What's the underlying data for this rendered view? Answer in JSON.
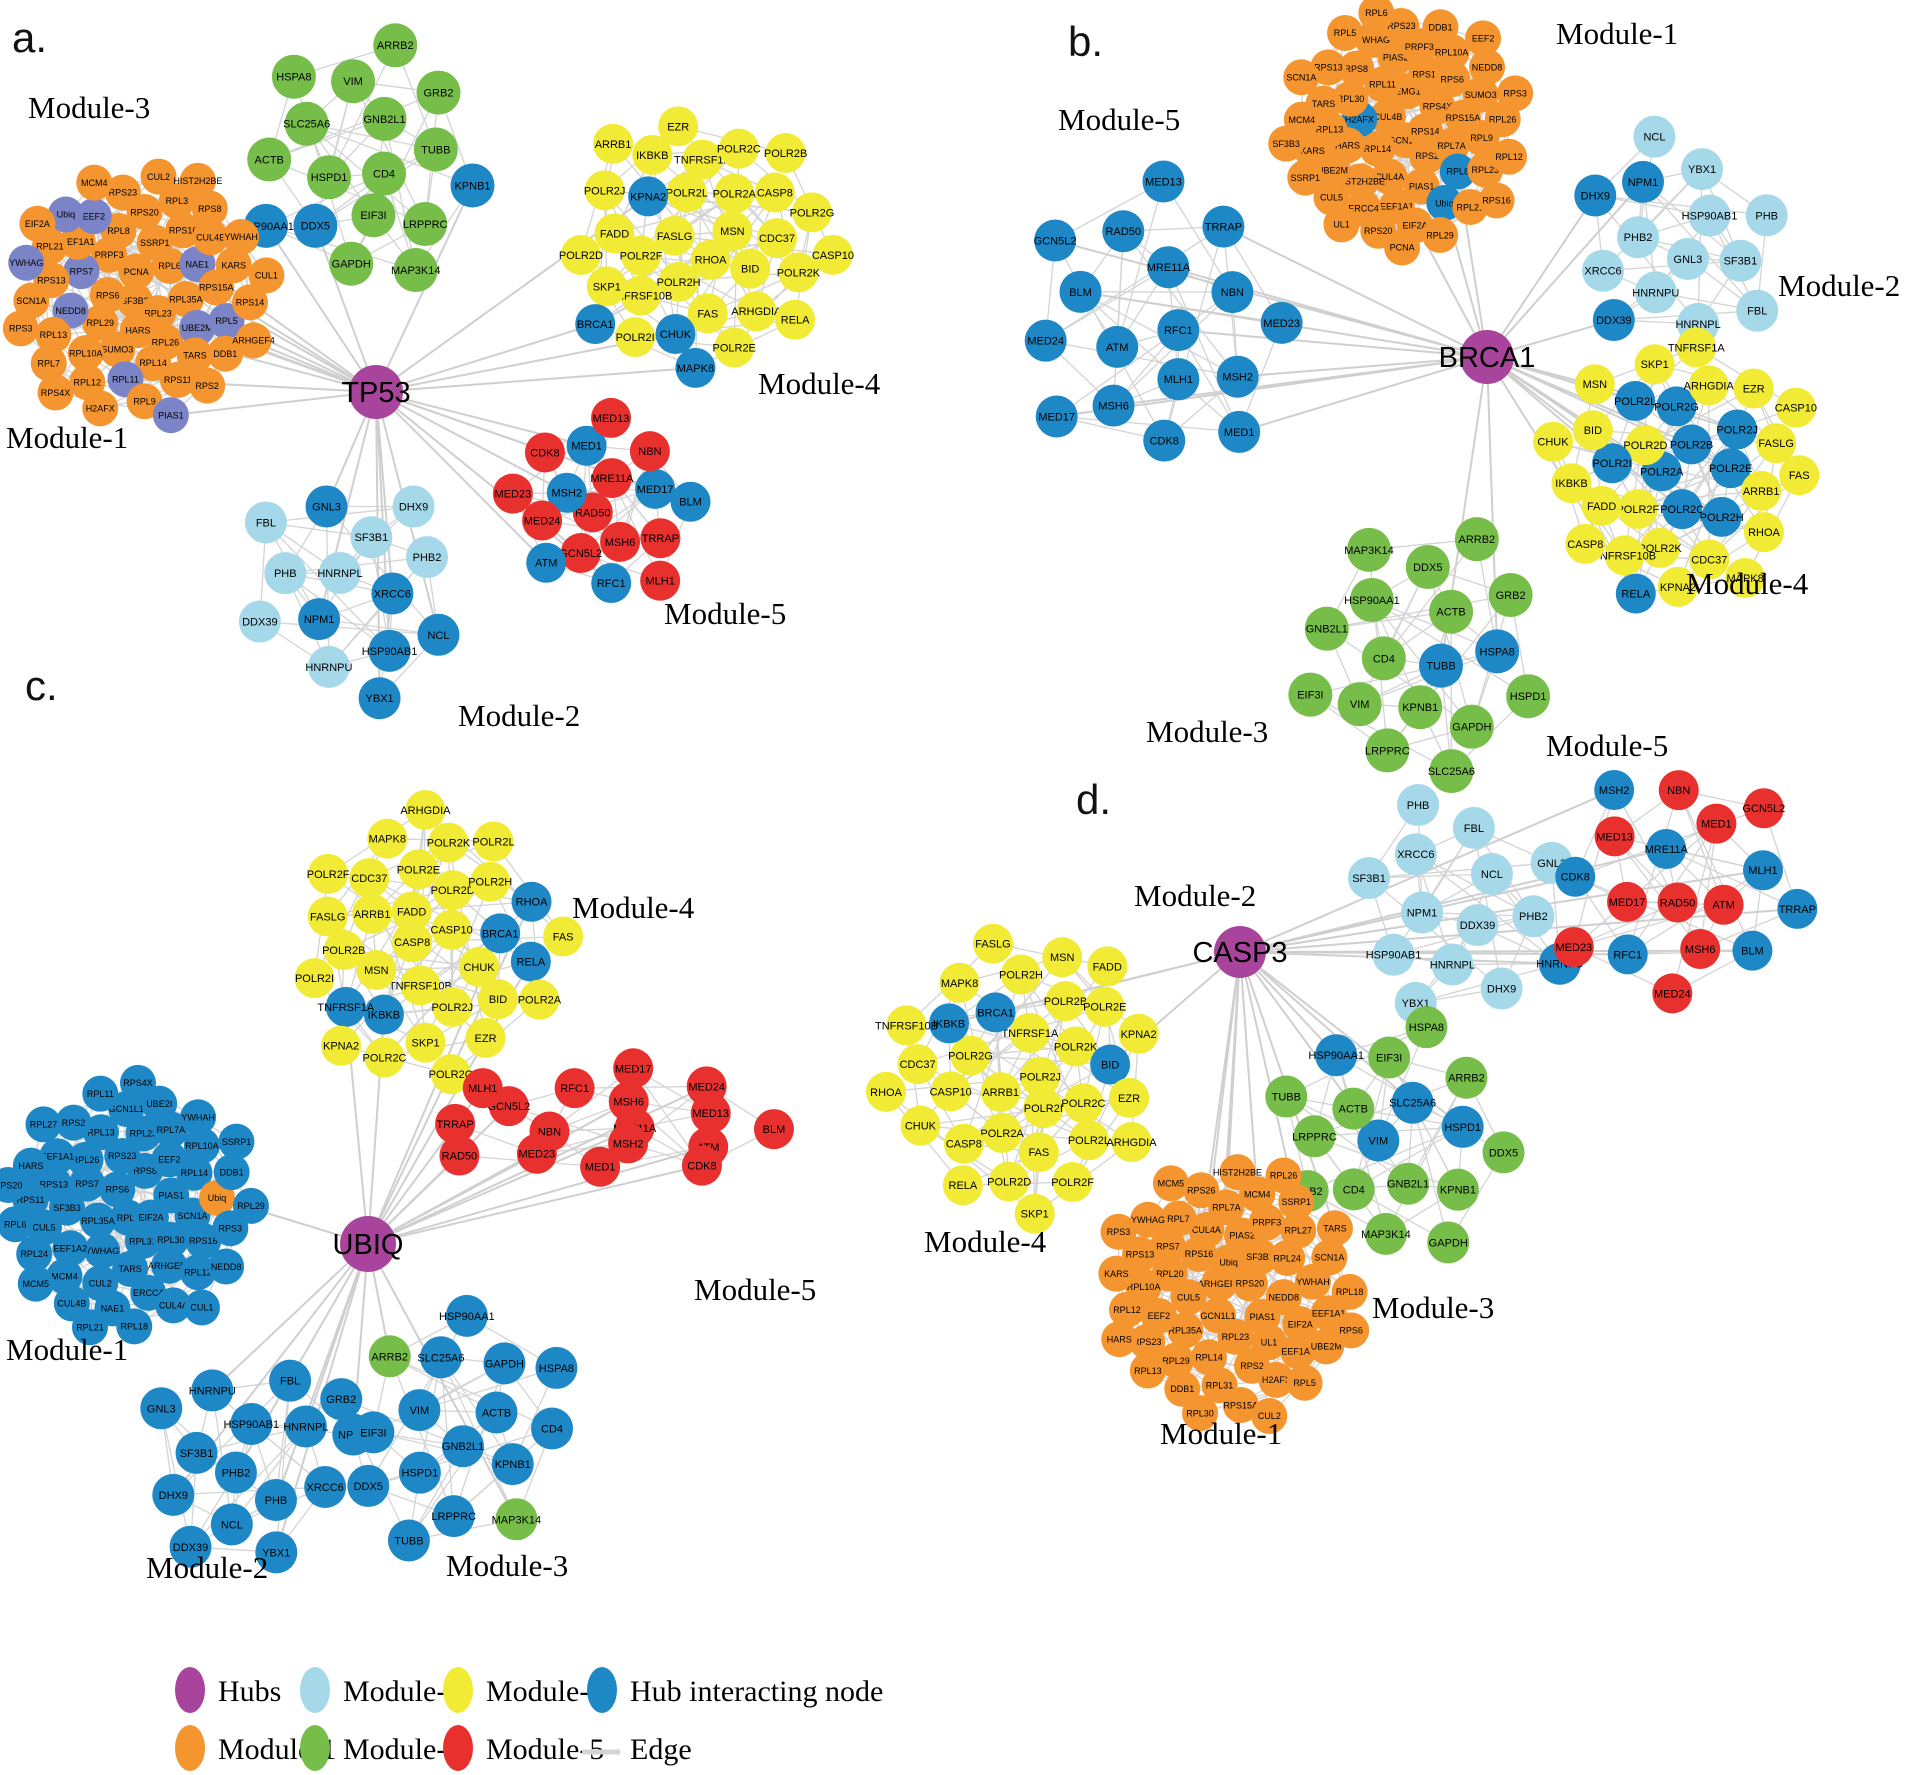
{
  "colors": {
    "hub": "#A9449D",
    "module1": "#F5952F",
    "module2": "#A5D9E9",
    "module3": "#76BE49",
    "module4": "#F2EB35",
    "module5": "#E8312E",
    "interact": "#1E88C7",
    "interact2": "#7B84C6",
    "edge": "#D4D4D4",
    "spoke": "#CFCFCF"
  },
  "legend": {
    "items": [
      {
        "swatch": "hub",
        "label": "Hubs"
      },
      {
        "swatch": "module2",
        "label": "Module-2"
      },
      {
        "swatch": "module4",
        "label": "Module-4"
      },
      {
        "swatch": "interact",
        "label": "Hub interacting node"
      },
      {
        "swatch": "module1",
        "label": "Module-1"
      },
      {
        "swatch": "module3",
        "label": "Module-3"
      },
      {
        "swatch": "module5",
        "label": "Module-5"
      },
      {
        "swatch": "edge",
        "label": "Edge"
      }
    ]
  },
  "panels": [
    {
      "id": "a",
      "letter": "a.",
      "hub": "TP53",
      "clusters": [
        {
          "id": "m3",
          "name": "Module-3",
          "base": "module3",
          "alt": "interact",
          "nodes": [
            "CD4",
            "HSPD1",
            "GNB2L1",
            "EIF3I",
            "SLC25A6",
            "TUBB",
            "*DDX5",
            "VIM",
            "LRPPRC",
            "ACTB",
            "GRB2",
            "GAPDH",
            "HSPA8",
            "*KPNB1",
            "*HSP90AA1",
            "ARRB2",
            "MAP3K14"
          ]
        },
        {
          "id": "m4",
          "name": "Module-4",
          "base": "module4",
          "alt": "interact",
          "nodes": [
            "RHOA",
            "FASLG",
            "MSN",
            "POLR2H",
            "POLR2L",
            "BID",
            "POLR2F",
            "POLR2A",
            "FAS",
            "*KPNA2",
            "CDC37",
            "TNFRSF10B",
            "TNFRSF1A",
            "ARHGDIA",
            "FADD",
            "CASP8",
            "*CHUK",
            "IKBKB",
            "POLR2K",
            "SKP1",
            "POLR2C",
            "POLR2E",
            "POLR2J",
            "POLR2G",
            "POLR2I",
            "EZR",
            "RELA",
            "POLR2D",
            "POLR2B",
            "*MAPK8",
            "ARRB1",
            "CASP10",
            "*BRCA1"
          ]
        },
        {
          "id": "m1",
          "name": "Module-1",
          "base": "module1",
          "alt": "interact2",
          "nodes": [
            "SF3B3",
            "PCNA",
            "RPL23",
            "RPS6",
            "RPL6",
            "HARS",
            "PRPF3",
            "RPL35A",
            "RPL29",
            "SSRP1",
            "RPL26",
            "*RPS7",
            "*NAE1",
            "SUMO3",
            "RPL8",
            "*UBE2M",
            "*NEDD8",
            "RPS16",
            "RPL14",
            "EEF1A1",
            "RPS15A",
            "RPL10A",
            "RPS20",
            "TARS",
            "RPS13",
            "CUL4B",
            "*RPL11",
            "*EEF2",
            "*RPL5",
            "RPL13",
            "RPL3",
            "RPS11",
            "RPL21",
            "KARS",
            "RPL12",
            "RPS23",
            "DDB1",
            "SCN1A",
            "RPS8",
            "RPL9",
            "*Ubiq",
            "RPS14",
            "RPL7",
            "CUL2",
            "RPS2",
            "*YWHAG",
            "YWHAH",
            "H2AFX",
            "MCM4",
            "ARHGEF4",
            "RPS3",
            "HIST2H2BE",
            "*PIAS1",
            "EIF2A",
            "CUL1",
            "RPS4X"
          ]
        },
        {
          "id": "m2",
          "name": "Module-2",
          "base": "module2",
          "alt": "interact",
          "nodes": [
            "HNRNPL",
            "*XRCC6",
            "*NPM1",
            "SF3B1",
            "*HSP90AB1",
            "PHB",
            "PHB2",
            "HNRNPU",
            "*GNL3",
            "*NCL",
            "DDX39",
            "DHX9",
            "*YBX1",
            "FBL"
          ]
        },
        {
          "id": "m5",
          "name": "Module-5",
          "base": "module5",
          "alt": "interact",
          "nodes": [
            "RAD50",
            "MRE11A",
            "MSH6",
            "*MSH2",
            "*MED17",
            "GCN5L2",
            "*MED1",
            "TRRAP",
            "MED24",
            "NBN",
            "*RFC1",
            "CDK8",
            "*BLM",
            "*ATM",
            "MED13",
            "MLH1",
            "MED23"
          ]
        }
      ]
    },
    {
      "id": "b",
      "letter": "b.",
      "hub": "BRCA1",
      "clusters": [
        {
          "id": "m5",
          "name": "Module-5",
          "base": "interact",
          "alt": "interact",
          "nodes": [
            "RFC1",
            "ATM",
            "MRE11A",
            "MLH1",
            "BLM",
            "NBN",
            "MSH6",
            "RAD50",
            "MSH2",
            "MED24",
            "TRRAP",
            "CDK8",
            "GCN5L2",
            "MED23",
            "MED17",
            "MED13",
            "MED1"
          ]
        },
        {
          "id": "m1",
          "name": "Module-1",
          "base": "module1",
          "alt": "interact",
          "nodes": [
            "GCN1L1",
            "CUL4B",
            "RPS14",
            "RPL14",
            "EMG1",
            "RPS2",
            "*H2AFX",
            "RPS4X",
            "CUL4A",
            "RPL11",
            "RPL7A",
            "HARS",
            "RPS11",
            "PIAS1",
            "RPL30",
            "RPS15A",
            "HIST2H2BE",
            "PIAS2",
            "*RPL8",
            "RPL13",
            "RPS6",
            "EEF1A1",
            "RPS8",
            "RPL9",
            "UBE2M",
            "PRPF3",
            "*Ubiq",
            "TARS",
            "SUMO3",
            "ERCC4",
            "YWHAG",
            "RPL23",
            "KARS",
            "RPL10A",
            "EIF2A",
            "RPS13",
            "RPL26",
            "CUL5",
            "RPS23",
            "RPL21",
            "MCM4",
            "NEDD8",
            "RPS20",
            "RPL5",
            "RPL12",
            "SSRP1",
            "DDB1",
            "RPL29",
            "SCN1A",
            "RPS3",
            "UL1",
            "RPL6",
            "RPS16",
            "SF3B3",
            "EEF2",
            "PCNA"
          ]
        },
        {
          "id": "m2",
          "name": "Module-2",
          "base": "module2",
          "alt": "interact",
          "nodes": [
            "GNL3",
            "PHB2",
            "HSP90AB1",
            "HNRNPU",
            "*NPM1",
            "SF3B1",
            "XRCC6",
            "YBX1",
            "HNRNPL",
            "*DHX9",
            "PHB",
            "*DDX39",
            "NCL",
            "FBL"
          ]
        },
        {
          "id": "m4",
          "name": "Module-4",
          "base": "module4",
          "alt": "interact",
          "nodes": [
            "*POLR2A",
            "*POLR2B",
            "*POLR2C",
            "POLR2D",
            "*POLR2E",
            "POLR2F",
            "*POLR2G",
            "*POLR2H",
            "*POLR2I",
            "*POLR2J",
            "POLR2K",
            "*POLR2L",
            "ARRB1",
            "FADD",
            "ARHGDIA",
            "CDC37",
            "BID",
            "FASLG",
            "TNFRSF10B",
            "SKP1",
            "RHOA",
            "IKBKB",
            "EZR",
            "KPNA2",
            "MSN",
            "FAS",
            "CASP8",
            "TNFRSF1A",
            "MAPK8",
            "CHUK",
            "CASP10",
            "*RELA"
          ]
        },
        {
          "id": "m3",
          "name": "Module-3",
          "base": "module3",
          "alt": "interact",
          "nodes": [
            "*TUBB",
            "CD4",
            "ACTB",
            "KPNB1",
            "HSP90AA1",
            "*HSPA8",
            "VIM",
            "DDX5",
            "GAPDH",
            "GNB2L1",
            "GRB2",
            "LRPPRC",
            "MAP3K14",
            "HSPD1",
            "EIF3I",
            "ARRB2",
            "SLC25A6"
          ]
        }
      ]
    },
    {
      "id": "c",
      "letter": "c.",
      "hub": "UBIQ",
      "clusters": [
        {
          "id": "m4",
          "name": "Module-4",
          "base": "module4",
          "alt": "interact",
          "nodes": [
            "CASP8",
            "CASP10",
            "TNFRSF10B",
            "FADD",
            "CHUK",
            "MSN",
            "POLR2D",
            "POLR2J",
            "ARRB1",
            "*BRCA1",
            "*IKBKB",
            "POLR2E",
            "BID",
            "POLR2B",
            "POLR2H",
            "SKP1",
            "CDC37",
            "*RELA",
            "*TNFRSF1A",
            "POLR2K",
            "EZR",
            "FASLG",
            "*RHOA",
            "POLR2C",
            "MAPK8",
            "POLR2A",
            "POLR2I",
            "POLR2L",
            "POLR2G",
            "POLR2F",
            "FAS",
            "KPNA2",
            "ARHGDIA"
          ]
        },
        {
          "id": "m5",
          "name": "Module-5",
          "base": "module5",
          "alt": "module5",
          "nodes": [
            "MRE11A",
            "NBN",
            "MSH6",
            "MSH2",
            "GCN5L2",
            "MED13",
            "MED23",
            "RFC1",
            "ATM",
            "TRRAP",
            "MED24",
            "MED1",
            "MLH1",
            "BLM",
            "RAD50",
            "MED17",
            "CDK8"
          ]
        },
        {
          "id": "m1",
          "name": "Module-1",
          "base": "interact",
          "alt": "module1",
          "nodes": [
            "RPL7",
            "RPS6",
            "EIF2A",
            "RPL35A",
            "RPS8",
            "RPL31",
            "RPS7",
            "PIAS1",
            "YWHAG",
            "RPS23",
            "RPL30",
            "SF3B3",
            "EEF2",
            "TARS",
            "RPL26",
            "SCN1A",
            "EEF1A2",
            "RPL23",
            "ARHGEF4",
            "RPS13",
            "RPL14",
            "CUL2",
            "RPL13",
            "RPS16",
            "CUL5",
            "RPL7A",
            "ERCC4",
            "EEF1A1",
            "*Ubiq",
            "MCM4",
            "GCN1L1",
            "RPL12",
            "RPS11",
            "RPL10A",
            "NAE1",
            "RPS2",
            "RPS3",
            "RPL24",
            "UBE2I",
            "CUL4A",
            "HARS",
            "DDB1",
            "CUL4B",
            "RPL11",
            "NEDD8",
            "RPL6",
            "YWHAH",
            "RPL18",
            "RPL27",
            "RPL29",
            "MCM5",
            "RPS4X",
            "CUL1",
            "RPS20",
            "SSRP1",
            "RPL21"
          ]
        },
        {
          "id": "m2",
          "name": "Module-2",
          "base": "interact",
          "alt": "interact",
          "nodes": [
            "PHB2",
            "HSP90AB1",
            "PHB",
            "SF3B1",
            "HNRNPL",
            "NCL",
            "HNRNPU",
            "XRCC6",
            "DHX9",
            "FBL",
            "YBX1",
            "GNL3",
            "NPM1",
            "DDX39"
          ]
        },
        {
          "id": "m3",
          "name": "Module-3",
          "base": "interact",
          "alt": "module3",
          "nodes": [
            "GNB2L1",
            "VIM",
            "ACTB",
            "HSPD1",
            "SLC25A6",
            "KPNB1",
            "EIF3I",
            "GAPDH",
            "LRPPRC",
            "*ARRB2",
            "CD4",
            "DDX5",
            "HSP90AA1",
            "*MAP3K14",
            "GRB2",
            "HSPA8",
            "TUBB"
          ]
        }
      ]
    },
    {
      "id": "d",
      "letter": "d.",
      "hub": "CASP3",
      "clusters": [
        {
          "id": "m2",
          "name": "Module-2",
          "base": "module2",
          "alt": "interact",
          "nodes": [
            "DDX39",
            "NPM1",
            "NCL",
            "HNRNPL",
            "XRCC6",
            "PHB2",
            "HSP90AB1",
            "FBL",
            "DHX9",
            "SF3B1",
            "GNL3",
            "YBX1",
            "PHB",
            "*HNRNPU"
          ]
        },
        {
          "id": "m5",
          "name": "Module-5",
          "base": "module5",
          "alt": "interact",
          "nodes": [
            "RAD50",
            "*MRE11A",
            "ATM",
            "MED17",
            "MED1",
            "MSH6",
            "MED13",
            "*MLH1",
            "*RFC1",
            "NBN",
            "*BLM",
            "*CDK8",
            "GCN5L2",
            "MED24",
            "*MSH2",
            "*TRRAP",
            "MED23"
          ]
        },
        {
          "id": "m4",
          "name": "Module-4",
          "base": "module4",
          "alt": "interact",
          "nodes": [
            "POLR2J",
            "ARRB1",
            "TNFRSF1A",
            "POLR2I",
            "POLR2G",
            "POLR2K",
            "POLR2A",
            "*BRCA1",
            "POLR2C",
            "CASP10",
            "POLR2B",
            "FAS",
            "*IKBKB",
            "*BID",
            "CASP8",
            "POLR2H",
            "POLR2L",
            "CDC37",
            "POLR2E",
            "POLR2D",
            "MAPK8",
            "EZR",
            "CHUK",
            "MSN",
            "POLR2F",
            "TNFRSF10B",
            "KPNA2",
            "RELA",
            "FASLG",
            "ARHGDIA",
            "RHOA",
            "FADD",
            "SKP1"
          ]
        },
        {
          "id": "m3",
          "name": "Module-3",
          "base": "module3",
          "alt": "interact",
          "nodes": [
            "*VIM",
            "*SLC25A6",
            "GNB2L1",
            "ACTB",
            "*HSPD1",
            "CD4",
            "EIF3I",
            "KPNB1",
            "LRPPRC",
            "ARRB2",
            "MAP3K14",
            "*HSP90AA1",
            "DDX5",
            "GRB2",
            "HSPA8",
            "GAPDH",
            "TUBB"
          ]
        },
        {
          "id": "m1",
          "name": "Module-1",
          "base": "module1",
          "alt": "module1",
          "nodes": [
            "ARHGEF4",
            "RPS20",
            "GCN1L1",
            "Ubiq",
            "PIAS1",
            "CUL5",
            "SF3B3",
            "RPL23",
            "RPS16",
            "NEDD8",
            "RPL35A",
            "PIAS2",
            "UL1",
            "RPL20",
            "RPL24",
            "RPL14",
            "CUL4A",
            "EIF2A",
            "EEF2",
            "PRPF3",
            "RPS2",
            "RPS7",
            "YWHAH",
            "RPL29",
            "RPL7A",
            "EEF1A2",
            "RPL10A",
            "RPL27",
            "RPL31",
            "RPL7",
            "EEF1A1",
            "RPS23",
            "MCM4",
            "H2AFX",
            "RPS13",
            "SCN1A",
            "DDB1",
            "RPS26",
            "UBE2M",
            "RPL12",
            "SSRP1",
            "RPS15A",
            "YWHAG",
            "RPL18",
            "RPL13",
            "HIST2H2BE",
            "RPL5",
            "KARS",
            "TARS",
            "RPL30",
            "MCM5",
            "RPS6",
            "HARS",
            "RPL26",
            "CUL2",
            "RPS3"
          ]
        }
      ]
    }
  ]
}
